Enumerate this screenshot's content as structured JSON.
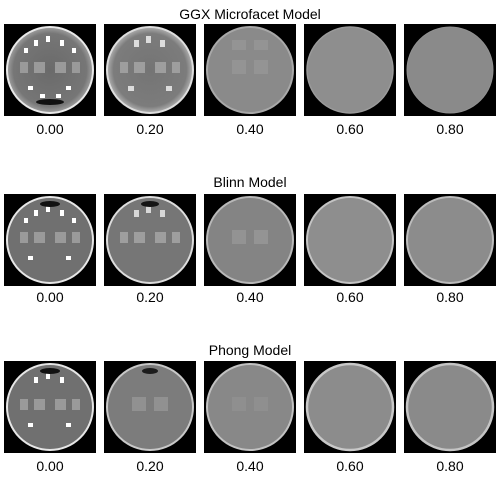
{
  "sections": [
    {
      "title": "GGX Microfacet Model",
      "roughness_labels": [
        "0.00",
        "0.20",
        "0.40",
        "0.60",
        "0.80"
      ]
    },
    {
      "title": "Blinn Model",
      "roughness_labels": [
        "0.00",
        "0.20",
        "0.40",
        "0.60",
        "0.80"
      ]
    },
    {
      "title": "Phong Model",
      "roughness_labels": [
        "0.00",
        "0.20",
        "0.40",
        "0.60",
        "0.80"
      ]
    }
  ]
}
